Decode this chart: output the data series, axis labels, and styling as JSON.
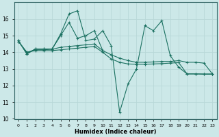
{
  "bg_color": "#cce8e8",
  "grid_color": "#b8d8d8",
  "line_color": "#1a7060",
  "xlabel": "Humidex (Indice chaleur)",
  "xlim": [
    -0.5,
    23.5
  ],
  "ylim": [
    10,
    17
  ],
  "yticks": [
    10,
    11,
    12,
    13,
    14,
    15,
    16
  ],
  "xticks": [
    0,
    1,
    2,
    3,
    4,
    5,
    6,
    7,
    8,
    9,
    10,
    11,
    12,
    13,
    14,
    15,
    16,
    17,
    18,
    19,
    20,
    21,
    22,
    23
  ],
  "series": [
    {
      "x": [
        0,
        1,
        2,
        3,
        4,
        5,
        6,
        7,
        8,
        9,
        10,
        11,
        12,
        13,
        14,
        15,
        16,
        17,
        18,
        19,
        20,
        21,
        22,
        23
      ],
      "y": [
        14.7,
        13.9,
        14.2,
        14.2,
        14.2,
        15.1,
        16.3,
        16.5,
        14.7,
        14.8,
        15.3,
        14.4,
        10.4,
        12.1,
        13.0,
        15.6,
        15.3,
        15.9,
        13.8,
        13.1,
        12.7,
        12.7,
        12.7,
        12.7
      ]
    },
    {
      "x": [
        0,
        1,
        2,
        3,
        4,
        5,
        6,
        7,
        8,
        9,
        10
      ],
      "y": [
        14.7,
        13.9,
        14.2,
        14.2,
        14.2,
        15.0,
        15.8,
        14.85,
        15.0,
        15.3,
        14.1
      ]
    },
    {
      "x": [
        0,
        1,
        2,
        3,
        4,
        5,
        6,
        7,
        8,
        9,
        10,
        11,
        12,
        13,
        14,
        15,
        16,
        17,
        18,
        19,
        20,
        21,
        22,
        23
      ],
      "y": [
        14.65,
        14.0,
        14.15,
        14.15,
        14.18,
        14.3,
        14.35,
        14.4,
        14.45,
        14.5,
        14.1,
        13.85,
        13.65,
        13.5,
        13.4,
        13.4,
        13.42,
        13.45,
        13.45,
        13.5,
        13.4,
        13.4,
        13.35,
        12.7
      ]
    },
    {
      "x": [
        0,
        1,
        2,
        3,
        4,
        5,
        6,
        7,
        8,
        9,
        10,
        11,
        12,
        13,
        14,
        15,
        16,
        17,
        18,
        19,
        20,
        21,
        22,
        23
      ],
      "y": [
        14.65,
        14.0,
        14.1,
        14.1,
        14.1,
        14.15,
        14.2,
        14.25,
        14.3,
        14.35,
        14.0,
        13.6,
        13.4,
        13.3,
        13.28,
        13.28,
        13.3,
        13.32,
        13.35,
        13.38,
        12.7,
        12.7,
        12.68,
        12.68
      ]
    }
  ]
}
